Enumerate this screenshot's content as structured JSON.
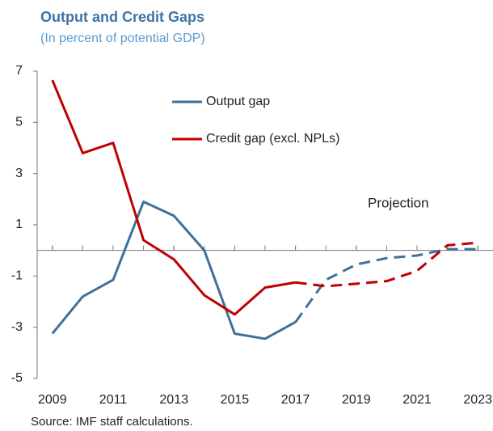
{
  "chart_data": {
    "type": "line",
    "title": "Output and Credit Gaps",
    "subtitle": "(In percent of potential GDP)",
    "source": "Source: IMF staff calculations.",
    "annotation": "Projection",
    "x": [
      2009,
      2010,
      2011,
      2012,
      2013,
      2014,
      2015,
      2016,
      2017,
      2018,
      2019,
      2020,
      2021,
      2022,
      2023
    ],
    "series": [
      {
        "name": "Output gap",
        "color": "#40709a",
        "values": [
          -3.25,
          -1.8,
          -1.15,
          1.9,
          1.35,
          0.0,
          -3.25,
          -3.45,
          -2.8,
          -1.15,
          -0.55,
          -0.3,
          -0.2,
          0.05,
          0.05
        ]
      },
      {
        "name": "Credit gap (excl. NPLs)",
        "color": "#c00000",
        "values": [
          6.65,
          3.8,
          4.2,
          0.4,
          -0.35,
          -1.75,
          -2.5,
          -1.45,
          -1.25,
          -1.4,
          -1.3,
          -1.2,
          -0.8,
          0.2,
          0.3
        ]
      }
    ],
    "dashed_from": 2017,
    "xlim": [
      2008.5,
      2023.5
    ],
    "xticks": [
      2009,
      2011,
      2013,
      2015,
      2017,
      2019,
      2021,
      2023
    ],
    "ylim": [
      -5,
      7
    ],
    "yticks": [
      7,
      5,
      3,
      1,
      -1,
      -3,
      -5
    ]
  }
}
